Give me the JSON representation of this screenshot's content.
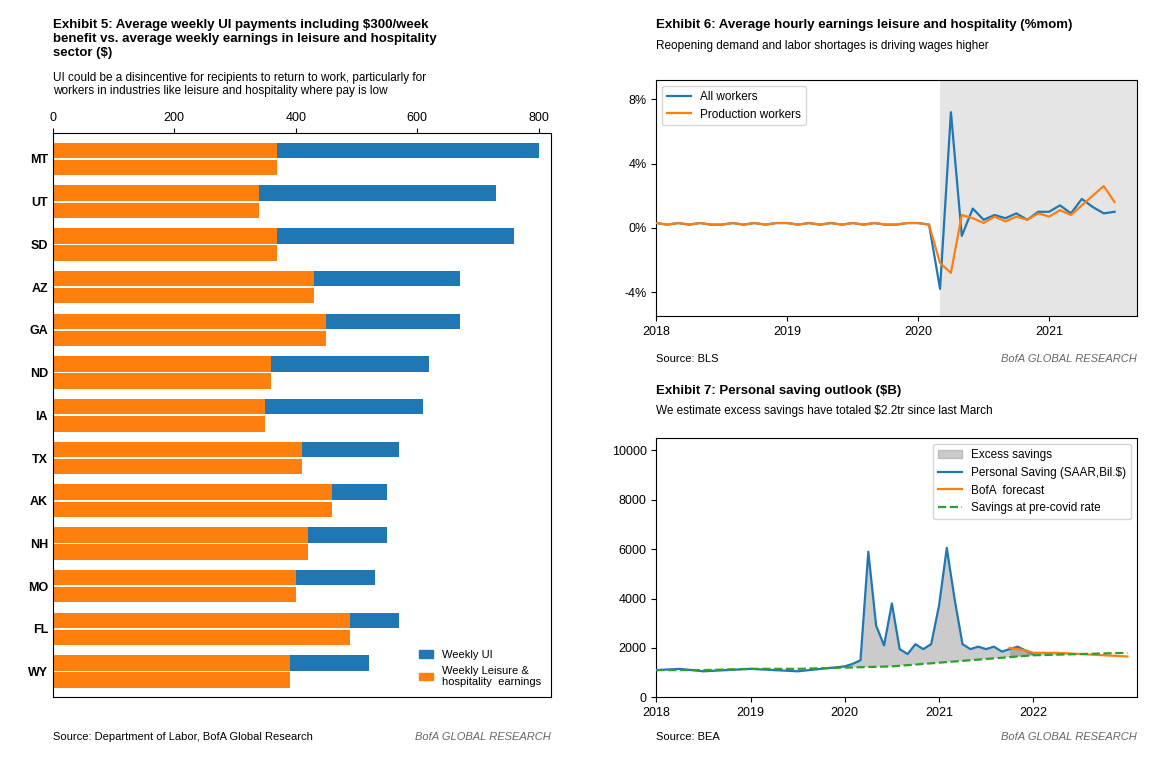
{
  "chart_data": [
    {
      "type": "bar",
      "orientation": "horizontal",
      "stacked": true,
      "title": "Exhibit 5: Average weekly UI payments including $300/week\nbenefit vs. average weekly earnings in leisure and hospitality\nsector ($)",
      "subtitle": "UI could be a disincentive for recipients to return to work, particularly for\nworkers in industries like leisure and hospitality where pay is low",
      "annotations": [
        "Source: Department of Labor, BofA Global Research",
        "BofA GLOBAL RESEARCH"
      ],
      "categories": [
        "WY",
        "FL",
        "MO",
        "NH",
        "AK",
        "TX",
        "IA",
        "ND",
        "GA",
        "AZ",
        "SD",
        "UT",
        "MT"
      ],
      "series": [
        {
          "name": "Weekly UI",
          "values": [
            130,
            80,
            130,
            130,
            90,
            160,
            260,
            260,
            220,
            240,
            390,
            390,
            430
          ]
        },
        {
          "name": "Weekly Leisure &\nhospitality  earnings",
          "values": [
            390,
            490,
            400,
            420,
            460,
            410,
            350,
            360,
            450,
            430,
            370,
            340,
            370
          ]
        }
      ],
      "xlim": [
        0,
        820
      ],
      "xticks": [
        0,
        200,
        400,
        600,
        800
      ],
      "legend": "lower right"
    },
    {
      "type": "line",
      "title": "Exhibit 6: Average hourly earnings leisure and hospitality (%mom)",
      "subtitle": "Reopening demand and labor shortages is driving wages higher",
      "annotations": [
        "Source: BLS",
        "BofA GLOBAL RESEARCH"
      ],
      "shaded_x": [
        2020.17,
        2021.67
      ],
      "series": [
        {
          "name": "All workers",
          "x": [
            2018.0,
            2018.083,
            2018.167,
            2018.25,
            2018.333,
            2018.417,
            2018.5,
            2018.583,
            2018.667,
            2018.75,
            2018.833,
            2018.917,
            2019.0,
            2019.083,
            2019.167,
            2019.25,
            2019.333,
            2019.417,
            2019.5,
            2019.583,
            2019.667,
            2019.75,
            2019.833,
            2019.917,
            2020.0,
            2020.083,
            2020.167,
            2020.25,
            2020.333,
            2020.417,
            2020.5,
            2020.583,
            2020.667,
            2020.75,
            2020.833,
            2020.917,
            2021.0,
            2021.083,
            2021.167,
            2021.25,
            2021.333,
            2021.417,
            2021.5
          ],
          "values": [
            0.003,
            0.002,
            0.003,
            0.002,
            0.003,
            0.002,
            0.002,
            0.003,
            0.002,
            0.003,
            0.002,
            0.003,
            0.003,
            0.002,
            0.003,
            0.002,
            0.003,
            0.002,
            0.003,
            0.002,
            0.003,
            0.002,
            0.002,
            0.003,
            0.003,
            0.002,
            -0.038,
            0.072,
            -0.005,
            0.012,
            0.005,
            0.008,
            0.006,
            0.009,
            0.005,
            0.01,
            0.01,
            0.014,
            0.009,
            0.018,
            0.013,
            0.009,
            0.01
          ]
        },
        {
          "name": "Production workers",
          "x": [
            2018.0,
            2018.083,
            2018.167,
            2018.25,
            2018.333,
            2018.417,
            2018.5,
            2018.583,
            2018.667,
            2018.75,
            2018.833,
            2018.917,
            2019.0,
            2019.083,
            2019.167,
            2019.25,
            2019.333,
            2019.417,
            2019.5,
            2019.583,
            2019.667,
            2019.75,
            2019.833,
            2019.917,
            2020.0,
            2020.083,
            2020.167,
            2020.25,
            2020.333,
            2020.417,
            2020.5,
            2020.583,
            2020.667,
            2020.75,
            2020.833,
            2020.917,
            2021.0,
            2021.083,
            2021.167,
            2021.25,
            2021.333,
            2021.417,
            2021.5
          ],
          "values": [
            0.003,
            0.002,
            0.003,
            0.002,
            0.003,
            0.002,
            0.002,
            0.003,
            0.002,
            0.003,
            0.002,
            0.003,
            0.003,
            0.002,
            0.003,
            0.002,
            0.003,
            0.002,
            0.003,
            0.002,
            0.003,
            0.002,
            0.002,
            0.003,
            0.003,
            0.002,
            -0.022,
            -0.028,
            0.008,
            0.006,
            0.003,
            0.007,
            0.004,
            0.007,
            0.005,
            0.009,
            0.007,
            0.011,
            0.008,
            0.014,
            0.02,
            0.026,
            0.016
          ]
        }
      ],
      "xlim": [
        2018,
        2021.67
      ],
      "xticks": [
        2018,
        2019,
        2020,
        2021
      ],
      "ylim": [
        -0.055,
        0.092
      ],
      "yticks": [
        {
          "value": -0.04,
          "label": "-4%"
        },
        {
          "value": 0.0,
          "label": "0%"
        },
        {
          "value": 0.04,
          "label": "4%"
        },
        {
          "value": 0.08,
          "label": "8%"
        }
      ],
      "legend": "upper left"
    },
    {
      "type": "line",
      "title": "Exhibit 7: Personal saving outlook ($B)",
      "subtitle": "We estimate excess savings have totaled $2.2tr since last March",
      "annotations": [
        "Source: BEA",
        "BofA GLOBAL RESEARCH"
      ],
      "area": {
        "name": "Excess savings",
        "upper": [
          "Personal Saving (SAAR,Bil.$)",
          "BofA  forecast"
        ],
        "lower": "Savings at pre-covid rate"
      },
      "series": [
        {
          "name": "Personal Saving (SAAR,Bil.$)",
          "x": [
            2018.0,
            2018.25,
            2018.5,
            2018.75,
            2019.0,
            2019.25,
            2019.5,
            2019.75,
            2020.0,
            2020.083,
            2020.167,
            2020.25,
            2020.333,
            2020.417,
            2020.5,
            2020.583,
            2020.667,
            2020.75,
            2020.833,
            2020.917,
            2021.0,
            2021.083,
            2021.167,
            2021.25,
            2021.333,
            2021.417,
            2021.5,
            2021.583,
            2021.667,
            2021.75,
            2021.833,
            2022.0
          ],
          "values": [
            1100,
            1150,
            1050,
            1100,
            1150,
            1100,
            1050,
            1150,
            1250,
            1350,
            1500,
            5900,
            2900,
            2100,
            3800,
            1950,
            1750,
            2150,
            1950,
            2150,
            3700,
            6050,
            3950,
            2150,
            1950,
            2050,
            1950,
            2050,
            1850,
            1950,
            2050,
            1750
          ]
        },
        {
          "name": "BofA  forecast",
          "x": [
            2021.75,
            2021.917,
            2022.0,
            2022.25,
            2022.5,
            2022.75,
            2023.0
          ],
          "values": [
            2000,
            1900,
            1800,
            1800,
            1750,
            1700,
            1650
          ]
        },
        {
          "name": "Savings at pre-covid rate",
          "line_style": "dashed",
          "x": [
            2018.0,
            2018.5,
            2019.0,
            2019.5,
            2020.0,
            2020.5,
            2021.0,
            2021.5,
            2022.0,
            2022.5,
            2023.0
          ],
          "values": [
            1100,
            1100,
            1150,
            1150,
            1200,
            1250,
            1400,
            1550,
            1700,
            1750,
            1800
          ]
        }
      ],
      "xlim": [
        2018,
        2023.1
      ],
      "xticks": [
        2018,
        2019,
        2020,
        2021,
        2022
      ],
      "ylim": [
        0,
        10500
      ],
      "yticks": [
        0,
        2000,
        4000,
        6000,
        8000,
        10000
      ],
      "legend": "upper right"
    }
  ]
}
